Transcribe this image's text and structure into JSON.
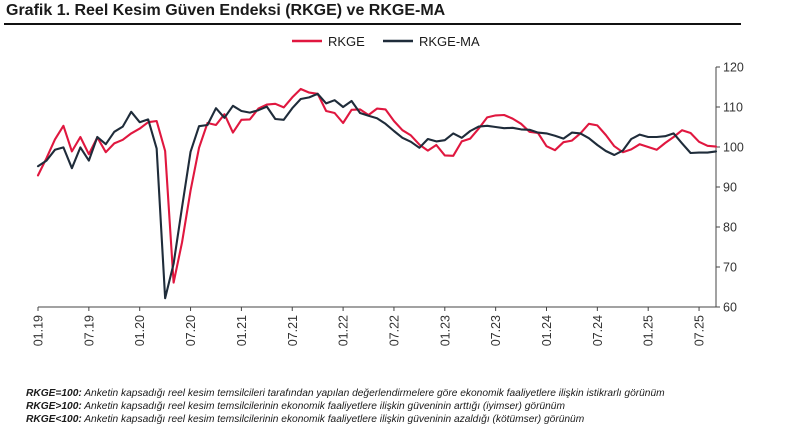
{
  "title": "Grafik 1. Reel Kesim Güven Endeksi (RKGE) ve RKGE-MA",
  "legend": [
    {
      "name": "RKGE",
      "color": "#e0173f"
    },
    {
      "name": "RKGE-MA",
      "color": "#1f2c3a"
    }
  ],
  "notes": [
    {
      "key": "RKGE=100:",
      "text": " Anketin kapsadığı reel kesim temsilcileri tarafından yapılan değerlendirmelere göre ekonomik faaliyetlere ilişkin istikrarlı görünüm"
    },
    {
      "key": "RKGE>100:",
      "text": " Anketin kapsadığı reel kesim temsilcilerinin ekonomik faaliyetlere ilişkin güveninin arttığı (iyimser) görünüm"
    },
    {
      "key": "RKGE<100:",
      "text": " Anketin kapsadığı reel kesim temsilcilerinin ekonomik faaliyetlere ilişkin güveninin azaldığı (kötümser) görünüm"
    }
  ],
  "chart_data": {
    "type": "line",
    "x_start": "2019-01",
    "x_end": "2025-07",
    "x_ticks": [
      "01.19",
      "07.19",
      "01.20",
      "07.20",
      "01.21",
      "07.21",
      "01.22",
      "07.22",
      "01.23",
      "07.23",
      "01.24",
      "07.24",
      "01.25",
      "07.25"
    ],
    "ylim": [
      60,
      120
    ],
    "y_ticks": [
      60,
      70,
      80,
      90,
      100,
      110,
      120
    ],
    "y_axis_side": "right",
    "grid": false,
    "legend_position": "top",
    "series": [
      {
        "name": "RKGE",
        "color": "#e0173f",
        "values": [
          92.9,
          97.2,
          101.9,
          105.3,
          98.9,
          102.5,
          98.2,
          102.4,
          98.7,
          100.9,
          101.8,
          103.4,
          104.6,
          106.2,
          106.5,
          99.0,
          66.1,
          76.2,
          89.1,
          99.8,
          106.0,
          105.5,
          108.2,
          103.6,
          106.8,
          106.9,
          109.6,
          110.6,
          110.8,
          109.9,
          112.4,
          114.5,
          113.6,
          113.3,
          109.0,
          108.5,
          106.0,
          109.3,
          109.4,
          108.0,
          109.6,
          109.4,
          106.5,
          104.2,
          102.9,
          100.6,
          99.1,
          100.5,
          97.9,
          97.8,
          101.4,
          102.1,
          104.6,
          107.4,
          107.9,
          108.0,
          107.1,
          105.8,
          103.8,
          103.5,
          100.2,
          99.2,
          101.2,
          101.6,
          103.4,
          105.8,
          105.4,
          103.0,
          100.2,
          98.7,
          99.4,
          100.7,
          100.0,
          99.3,
          101.0,
          102.5,
          104.2,
          103.5,
          101.3,
          100.3,
          100.1
        ]
      },
      {
        "name": "RKGE-MA",
        "color": "#1f2c3a",
        "values": [
          95.2,
          96.6,
          99.3,
          99.9,
          94.7,
          99.9,
          96.6,
          102.5,
          100.7,
          103.8,
          105.1,
          108.8,
          106.2,
          106.9,
          99.6,
          62.2,
          70.8,
          85.0,
          98.8,
          105.2,
          105.5,
          109.7,
          107.3,
          110.3,
          109.0,
          108.6,
          109.2,
          110.1,
          107.0,
          106.8,
          109.7,
          112.0,
          112.4,
          113.3,
          110.9,
          111.7,
          110.0,
          111.5,
          108.5,
          107.8,
          107.2,
          105.8,
          104.0,
          102.3,
          101.3,
          99.8,
          102.0,
          101.4,
          101.7,
          103.4,
          102.3,
          104.0,
          105.1,
          105.3,
          105.0,
          104.7,
          104.8,
          104.4,
          104.3,
          103.6,
          103.4,
          102.8,
          102.1,
          103.6,
          103.4,
          102.2,
          100.5,
          99.0,
          98.0,
          99.1,
          102.0,
          103.1,
          102.5,
          102.5,
          102.7,
          103.4,
          100.9,
          98.5,
          98.6,
          98.6,
          98.9
        ]
      }
    ]
  }
}
